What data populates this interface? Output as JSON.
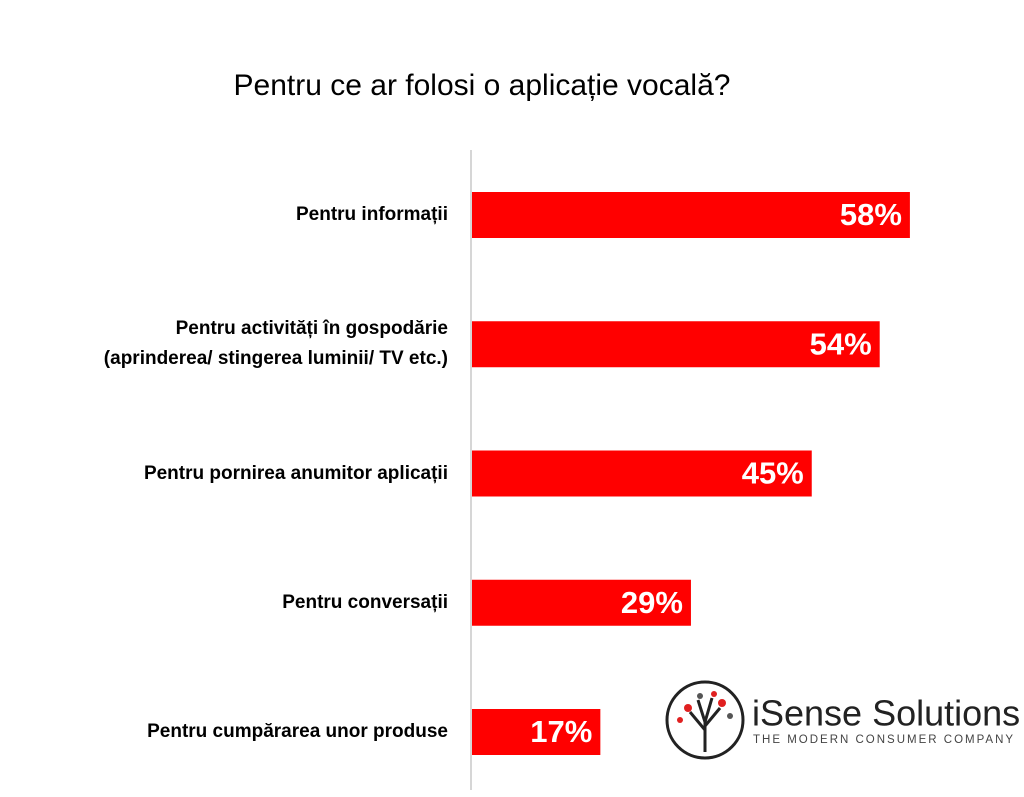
{
  "chart_data": {
    "type": "bar",
    "orientation": "horizontal",
    "title": "Pentru ce ar folosi o aplicație vocală?",
    "categories": [
      "Pentru informații",
      "Pentru activități în gospodărie\n(aprinderea/ stingerea luminii/ TV etc.)",
      "Pentru pornirea anumitor aplicații",
      "Pentru conversații",
      "Pentru cumpărarea unor produse"
    ],
    "values": [
      58,
      54,
      45,
      29,
      17
    ],
    "value_labels": [
      "58%",
      "54%",
      "45%",
      "29%",
      "17%"
    ],
    "color": "#ff0000"
  },
  "logo": {
    "name": "iSense Solutions",
    "tagline": "THE MODERN CONSUMER COMPANY"
  }
}
